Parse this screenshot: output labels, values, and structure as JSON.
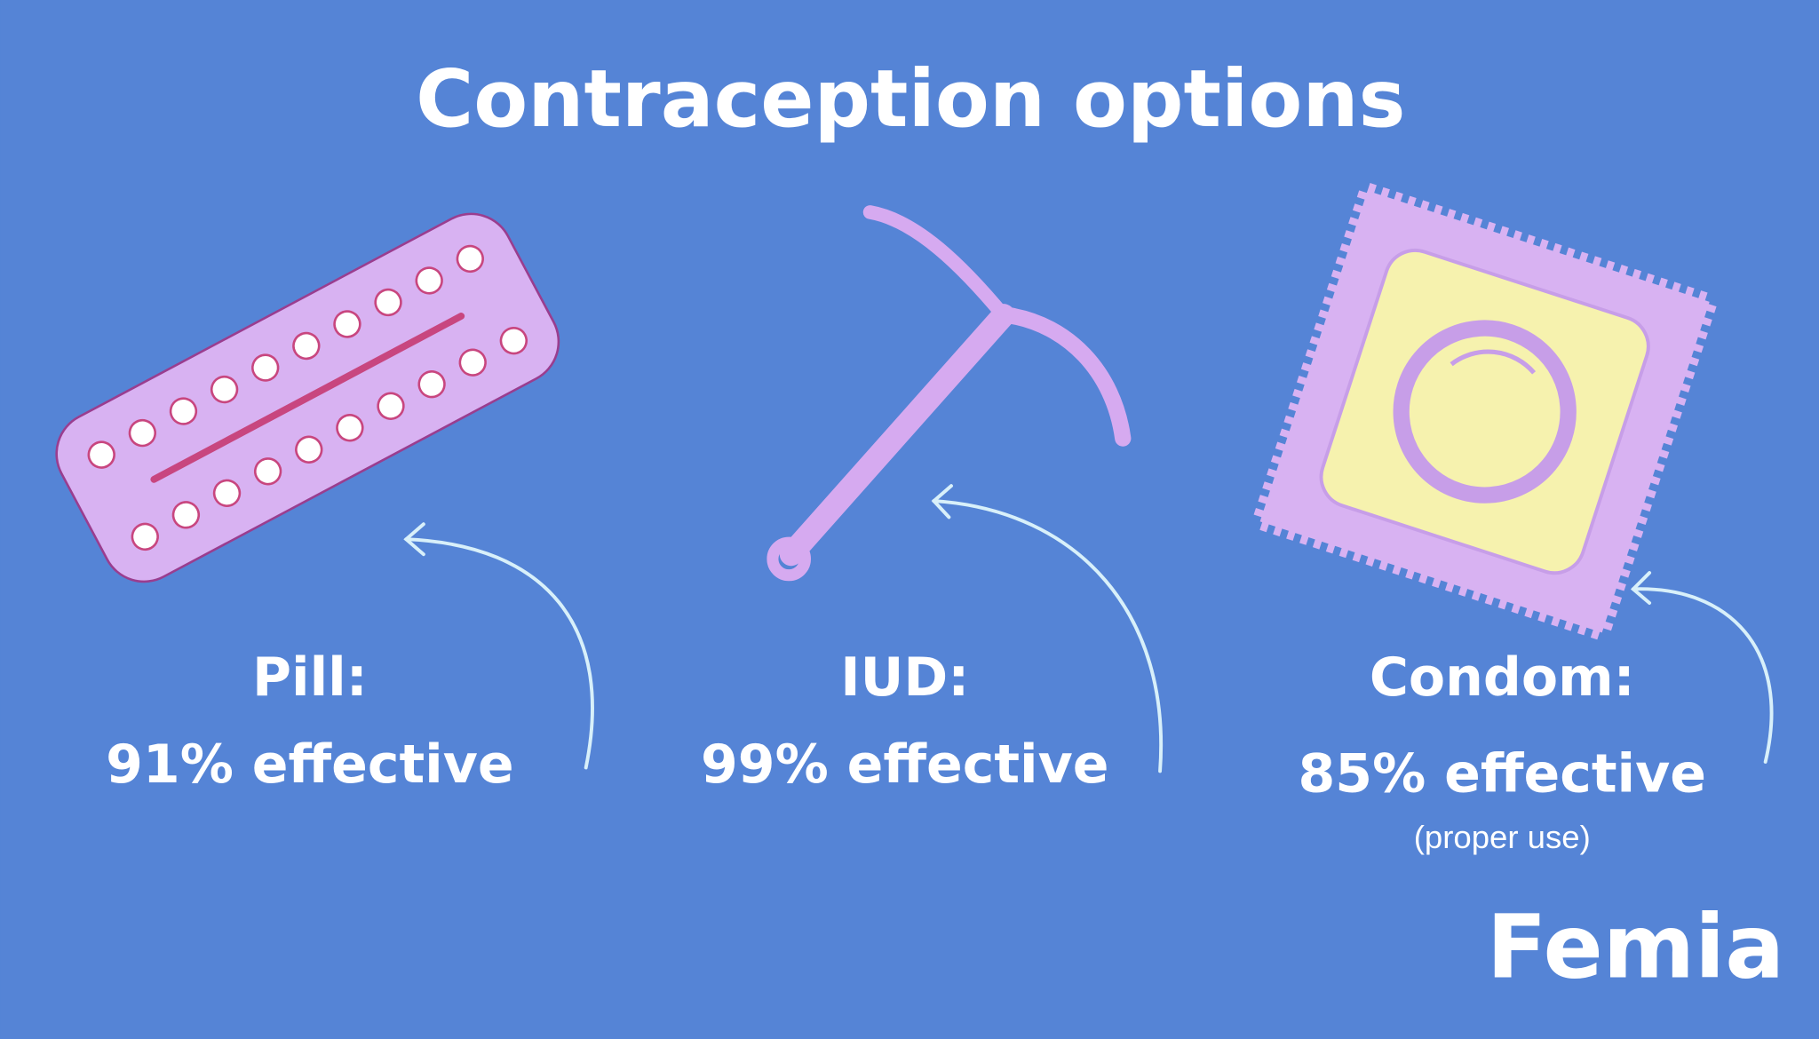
{
  "title": "Contraception options",
  "items": [
    {
      "label": "Pill:",
      "effectiveness": "91% effective"
    },
    {
      "label": "IUD:",
      "effectiveness": "99% effective"
    },
    {
      "label": "Condom:",
      "effectiveness": "85% effective",
      "note": "(proper use)"
    }
  ],
  "brand": "Femia"
}
